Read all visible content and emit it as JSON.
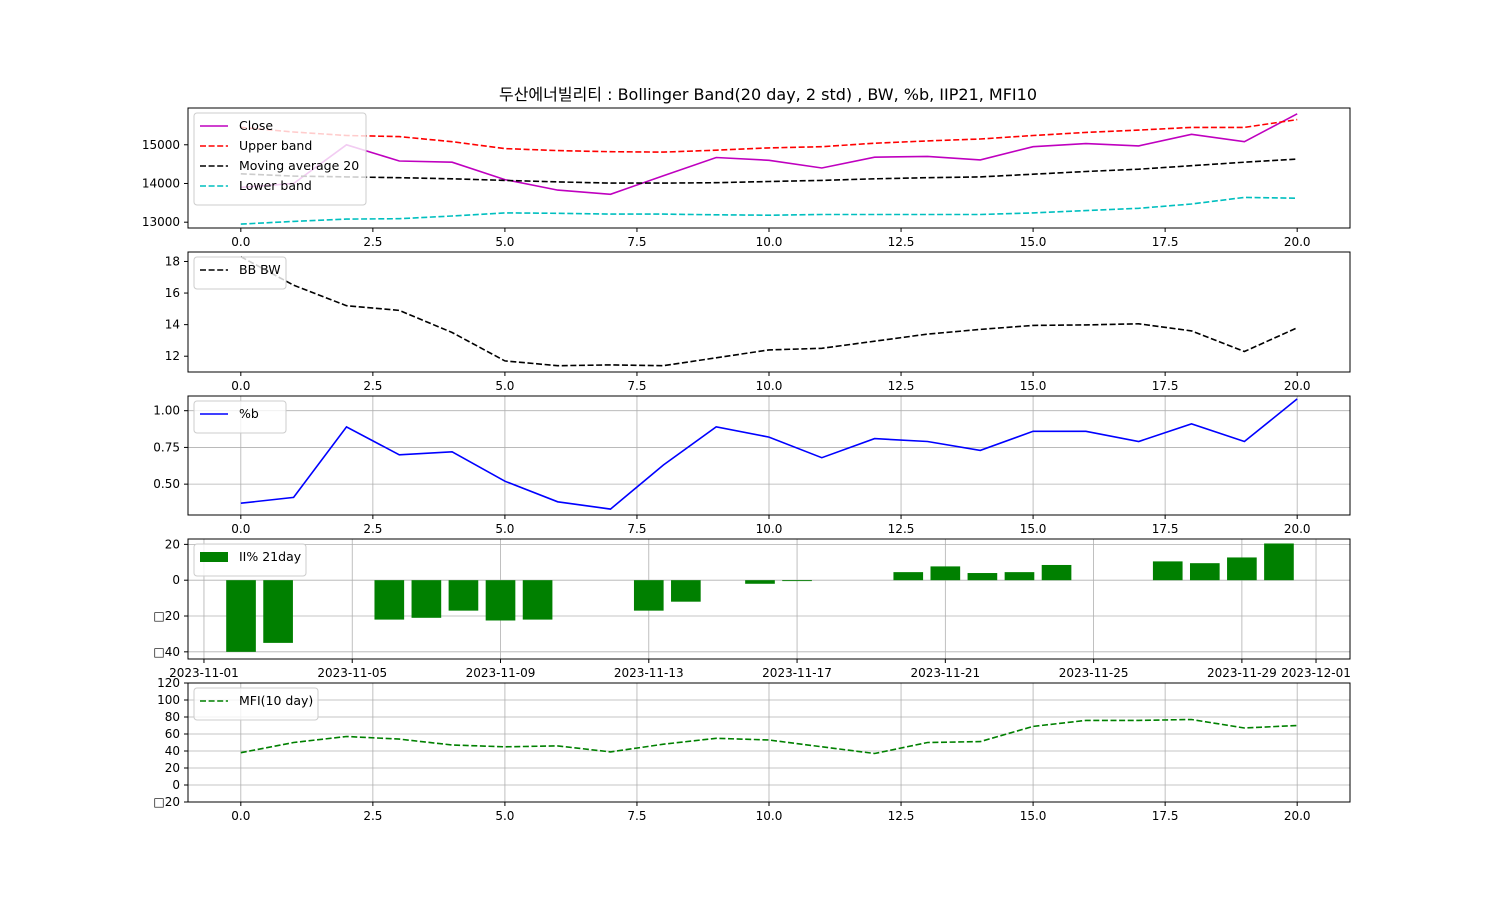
{
  "figure": {
    "title": "두산에너빌리티 : Bollinger Band(20 day, 2 std) , BW, %b, IIP21, MFI10"
  },
  "chart_data": [
    {
      "type": "line",
      "grid": false,
      "legend_placement": "upper-left",
      "x": [
        0,
        1,
        2,
        3,
        4,
        5,
        6,
        7,
        8,
        9,
        10,
        11,
        12,
        13,
        14,
        15,
        16,
        17,
        18,
        19,
        20
      ],
      "xlim": [
        -1,
        21
      ],
      "ylim": [
        12850,
        15950
      ],
      "xticks": [
        0.0,
        2.5,
        5.0,
        7.5,
        10.0,
        12.5,
        15.0,
        17.5,
        20.0
      ],
      "xtick_labels": [
        "0.0",
        "2.5",
        "5.0",
        "7.5",
        "10.0",
        "12.5",
        "15.0",
        "17.5",
        "20.0"
      ],
      "yticks": [
        13000,
        14000,
        15000
      ],
      "ytick_labels": [
        "13000",
        "14000",
        "15000"
      ],
      "series": [
        {
          "name": "Close",
          "color": "#bf00bf",
          "style": "solid",
          "values": [
            13900,
            14000,
            15000,
            14580,
            14550,
            14100,
            13830,
            13720,
            14200,
            14670,
            14600,
            14400,
            14680,
            14700,
            14610,
            14950,
            15030,
            14970,
            15270,
            15080,
            15800
          ]
        },
        {
          "name": "Upper band",
          "color": "#ff0000",
          "style": "dashed",
          "values": [
            15450,
            15330,
            15240,
            15210,
            15080,
            14900,
            14850,
            14820,
            14810,
            14860,
            14920,
            14950,
            15040,
            15100,
            15150,
            15240,
            15320,
            15380,
            15450,
            15450,
            15650
          ]
        },
        {
          "name": "Moving average 20",
          "color": "#000000",
          "style": "dashed",
          "values": [
            14250,
            14190,
            14170,
            14150,
            14120,
            14080,
            14040,
            14010,
            14010,
            14020,
            14050,
            14080,
            14120,
            14150,
            14170,
            14240,
            14310,
            14370,
            14460,
            14550,
            14630
          ]
        },
        {
          "name": "Lower band",
          "color": "#00bfbf",
          "style": "dashed",
          "values": [
            12950,
            13020,
            13080,
            13090,
            13160,
            13240,
            13230,
            13210,
            13210,
            13190,
            13180,
            13200,
            13200,
            13200,
            13200,
            13240,
            13300,
            13360,
            13470,
            13640,
            13620
          ]
        }
      ]
    },
    {
      "type": "line",
      "grid": false,
      "legend_placement": "upper-left",
      "x": [
        0,
        1,
        2,
        3,
        4,
        5,
        6,
        7,
        8,
        9,
        10,
        11,
        12,
        13,
        14,
        15,
        16,
        17,
        18,
        19,
        20
      ],
      "xlim": [
        -1,
        21
      ],
      "ylim": [
        11,
        18.6
      ],
      "xticks": [
        0.0,
        2.5,
        5.0,
        7.5,
        10.0,
        12.5,
        15.0,
        17.5,
        20.0
      ],
      "xtick_labels": [
        "0.0",
        "2.5",
        "5.0",
        "7.5",
        "10.0",
        "12.5",
        "15.0",
        "17.5",
        "20.0"
      ],
      "yticks": [
        12,
        14,
        16,
        18
      ],
      "ytick_labels": [
        "12",
        "14",
        "16",
        "18"
      ],
      "series": [
        {
          "name": "BB BW",
          "color": "#000000",
          "style": "dashed",
          "values": [
            18.3,
            16.5,
            15.2,
            14.9,
            13.5,
            11.7,
            11.4,
            11.45,
            11.4,
            11.9,
            12.4,
            12.5,
            12.95,
            13.4,
            13.7,
            13.95,
            13.98,
            14.05,
            13.6,
            12.3,
            13.8
          ]
        }
      ]
    },
    {
      "type": "line",
      "grid": true,
      "legend_placement": "upper-left",
      "x": [
        0,
        1,
        2,
        3,
        4,
        5,
        6,
        7,
        8,
        9,
        10,
        11,
        12,
        13,
        14,
        15,
        16,
        17,
        18,
        19,
        20
      ],
      "xlim": [
        -1,
        21
      ],
      "ylim": [
        0.29,
        1.1
      ],
      "xticks": [
        0.0,
        2.5,
        5.0,
        7.5,
        10.0,
        12.5,
        15.0,
        17.5,
        20.0
      ],
      "xtick_labels": [
        "0.0",
        "2.5",
        "5.0",
        "7.5",
        "10.0",
        "12.5",
        "15.0",
        "17.5",
        "20.0"
      ],
      "yticks": [
        0.5,
        0.75,
        1.0
      ],
      "ytick_labels": [
        "0.50",
        "0.75",
        "1.00"
      ],
      "series": [
        {
          "name": "%b",
          "color": "#0000ff",
          "style": "solid",
          "values": [
            0.37,
            0.41,
            0.89,
            0.7,
            0.72,
            0.52,
            0.38,
            0.33,
            0.63,
            0.89,
            0.82,
            0.68,
            0.81,
            0.79,
            0.73,
            0.86,
            0.86,
            0.79,
            0.91,
            0.79,
            1.08
          ]
        }
      ]
    },
    {
      "type": "bar",
      "grid": true,
      "legend_placement": "upper-left",
      "x": [
        "2023-11-02",
        "2023-11-03",
        "2023-11-06",
        "2023-11-07",
        "2023-11-08",
        "2023-11-09",
        "2023-11-10",
        "2023-11-13",
        "2023-11-14",
        "2023-11-16",
        "2023-11-17",
        "2023-11-20",
        "2023-11-21",
        "2023-11-22",
        "2023-11-23",
        "2023-11-24",
        "2023-11-27",
        "2023-11-28",
        "2023-11-29",
        "2023-11-30"
      ],
      "xlim": [
        "2023-10-31T13:40",
        "2023-12-01T22:00"
      ],
      "ylim": [
        -44,
        23
      ],
      "xticks": [
        "2023-11-01",
        "2023-11-05",
        "2023-11-09",
        "2023-11-13",
        "2023-11-17",
        "2023-11-21",
        "2023-11-25",
        "2023-11-29",
        "2023-12-01"
      ],
      "xtick_labels": [
        "2023-11-01",
        "2023-11-05",
        "2023-11-09",
        "2023-11-13",
        "2023-11-17",
        "2023-11-21",
        "2023-11-25",
        "2023-11-29",
        "2023-12-01"
      ],
      "yticks": [
        -40,
        -20,
        0,
        20
      ],
      "ytick_labels": [
        "□40",
        "□20",
        "0",
        "20"
      ],
      "series": [
        {
          "name": "II% 21day",
          "color": "#008000",
          "values": [
            -40,
            -35,
            -22,
            -21,
            -17,
            -22.5,
            -22,
            -17,
            -12,
            -2,
            -0.5,
            4.5,
            7.7,
            4,
            4.5,
            8.5,
            10.5,
            9.5,
            12.7,
            20.5
          ]
        }
      ]
    },
    {
      "type": "line",
      "grid": true,
      "legend_placement": "upper-left",
      "x": [
        0,
        1,
        2,
        3,
        4,
        5,
        6,
        7,
        8,
        9,
        10,
        11,
        12,
        13,
        14,
        15,
        16,
        17,
        18,
        19,
        20
      ],
      "xlim": [
        -1,
        21
      ],
      "ylim": [
        -20,
        120
      ],
      "xticks": [
        0.0,
        2.5,
        5.0,
        7.5,
        10.0,
        12.5,
        15.0,
        17.5,
        20.0
      ],
      "xtick_labels": [
        "0.0",
        "2.5",
        "5.0",
        "7.5",
        "10.0",
        "12.5",
        "15.0",
        "17.5",
        "20.0"
      ],
      "yticks": [
        -20,
        0,
        20,
        40,
        60,
        80,
        100,
        120
      ],
      "ytick_labels": [
        "□20",
        "0",
        "20",
        "40",
        "60",
        "80",
        "100",
        "120"
      ],
      "series": [
        {
          "name": "MFI(10 day)",
          "color": "#008000",
          "style": "dashed",
          "values": [
            38,
            50,
            57,
            54,
            47,
            45,
            46,
            39,
            48,
            55,
            53,
            45,
            37,
            50,
            51,
            69,
            76,
            76,
            77,
            67,
            70
          ]
        }
      ]
    }
  ]
}
